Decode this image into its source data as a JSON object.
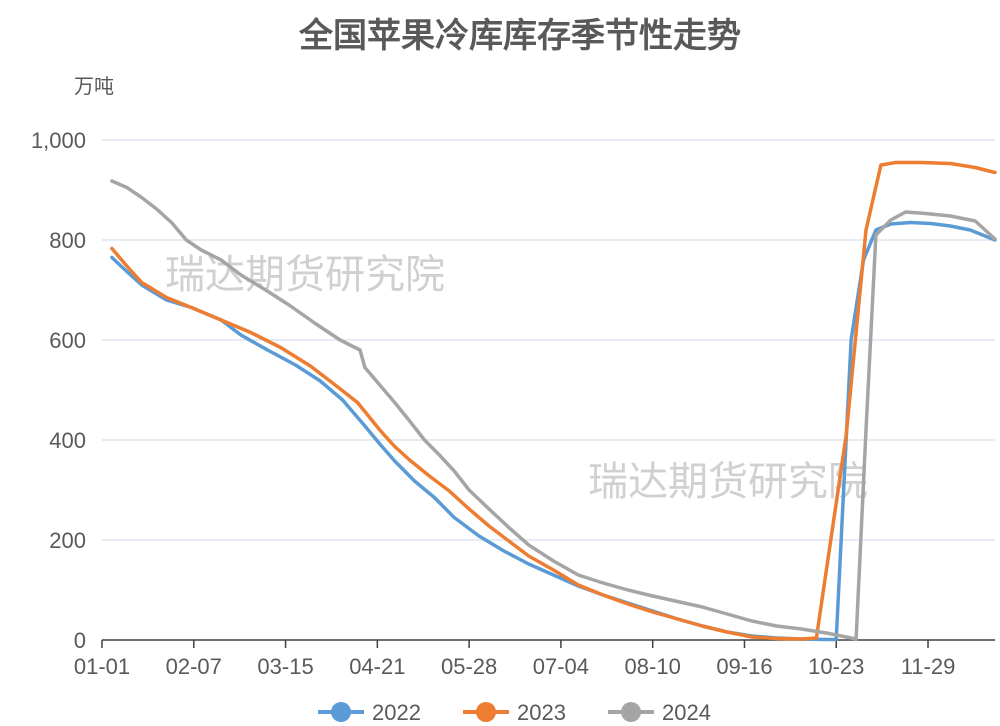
{
  "chart_data": {
    "type": "line",
    "title": "全国苹果冷库库存季节性走势",
    "ylabel": "万吨",
    "xlabel": "",
    "ylim": [
      0,
      1000
    ],
    "yticks": [
      0,
      200,
      400,
      600,
      800,
      1000
    ],
    "ytick_labels": [
      "0",
      "200",
      "400",
      "600",
      "800",
      "1,000"
    ],
    "x_domain": [
      0,
      360
    ],
    "xticks": [
      {
        "label": "01-01",
        "x": 0
      },
      {
        "label": "02-07",
        "x": 37
      },
      {
        "label": "03-15",
        "x": 74
      },
      {
        "label": "04-21",
        "x": 111
      },
      {
        "label": "05-28",
        "x": 148
      },
      {
        "label": "07-04",
        "x": 185
      },
      {
        "label": "08-10",
        "x": 222
      },
      {
        "label": "09-16",
        "x": 259
      },
      {
        "label": "10-23",
        "x": 296
      },
      {
        "label": "11-29",
        "x": 333
      }
    ],
    "grid": true,
    "legend": "bottom",
    "watermarks": [
      "瑞达期货研究院",
      "瑞达期货研究院"
    ],
    "series": [
      {
        "name": "2022",
        "color": "#5b9bd5",
        "points": [
          [
            4,
            765
          ],
          [
            10,
            737
          ],
          [
            16,
            710
          ],
          [
            26,
            680
          ],
          [
            36,
            665
          ],
          [
            48,
            640
          ],
          [
            56,
            610
          ],
          [
            66,
            582
          ],
          [
            78,
            550
          ],
          [
            88,
            518
          ],
          [
            97,
            480
          ],
          [
            106,
            428
          ],
          [
            112,
            392
          ],
          [
            118,
            358
          ],
          [
            126,
            318
          ],
          [
            134,
            285
          ],
          [
            142,
            245
          ],
          [
            152,
            208
          ],
          [
            162,
            178
          ],
          [
            172,
            152
          ],
          [
            182,
            130
          ],
          [
            192,
            108
          ],
          [
            202,
            90
          ],
          [
            212,
            74
          ],
          [
            222,
            58
          ],
          [
            232,
            42
          ],
          [
            242,
            28
          ],
          [
            252,
            16
          ],
          [
            262,
            8
          ],
          [
            272,
            4
          ],
          [
            282,
            2
          ],
          [
            292,
            1
          ],
          [
            296,
            1
          ],
          [
            302,
            600
          ],
          [
            307,
            760
          ],
          [
            312,
            820
          ],
          [
            318,
            832
          ],
          [
            326,
            835
          ],
          [
            334,
            833
          ],
          [
            342,
            828
          ],
          [
            350,
            820
          ],
          [
            360,
            800
          ]
        ]
      },
      {
        "name": "2023",
        "color": "#ed7d31",
        "points": [
          [
            4,
            783
          ],
          [
            10,
            748
          ],
          [
            16,
            715
          ],
          [
            26,
            685
          ],
          [
            36,
            665
          ],
          [
            48,
            640
          ],
          [
            60,
            615
          ],
          [
            72,
            585
          ],
          [
            84,
            548
          ],
          [
            94,
            510
          ],
          [
            103,
            475
          ],
          [
            112,
            420
          ],
          [
            118,
            387
          ],
          [
            124,
            360
          ],
          [
            132,
            328
          ],
          [
            140,
            298
          ],
          [
            148,
            262
          ],
          [
            156,
            228
          ],
          [
            164,
            198
          ],
          [
            172,
            168
          ],
          [
            182,
            140
          ],
          [
            192,
            110
          ],
          [
            202,
            90
          ],
          [
            212,
            72
          ],
          [
            222,
            56
          ],
          [
            232,
            42
          ],
          [
            242,
            28
          ],
          [
            252,
            16
          ],
          [
            262,
            6
          ],
          [
            272,
            3
          ],
          [
            282,
            2
          ],
          [
            288,
            4
          ],
          [
            300,
            410
          ],
          [
            308,
            820
          ],
          [
            314,
            950
          ],
          [
            320,
            955
          ],
          [
            330,
            955
          ],
          [
            342,
            953
          ],
          [
            352,
            945
          ],
          [
            360,
            935
          ]
        ]
      },
      {
        "name": "2024",
        "color": "#a5a5a5",
        "points": [
          [
            4,
            918
          ],
          [
            10,
            905
          ],
          [
            16,
            885
          ],
          [
            22,
            862
          ],
          [
            28,
            835
          ],
          [
            34,
            800
          ],
          [
            40,
            780
          ],
          [
            48,
            760
          ],
          [
            56,
            730
          ],
          [
            66,
            700
          ],
          [
            76,
            668
          ],
          [
            86,
            633
          ],
          [
            96,
            600
          ],
          [
            104,
            580
          ],
          [
            106,
            545
          ],
          [
            112,
            510
          ],
          [
            118,
            475
          ],
          [
            124,
            438
          ],
          [
            130,
            400
          ],
          [
            136,
            370
          ],
          [
            142,
            338
          ],
          [
            148,
            300
          ],
          [
            156,
            262
          ],
          [
            164,
            225
          ],
          [
            172,
            190
          ],
          [
            182,
            158
          ],
          [
            192,
            130
          ],
          [
            202,
            114
          ],
          [
            212,
            100
          ],
          [
            222,
            88
          ],
          [
            232,
            77
          ],
          [
            242,
            66
          ],
          [
            252,
            52
          ],
          [
            262,
            38
          ],
          [
            272,
            28
          ],
          [
            282,
            22
          ],
          [
            292,
            14
          ],
          [
            300,
            6
          ],
          [
            304,
            2
          ],
          [
            308,
            420
          ],
          [
            312,
            810
          ],
          [
            318,
            840
          ],
          [
            324,
            856
          ],
          [
            332,
            853
          ],
          [
            342,
            848
          ],
          [
            352,
            838
          ],
          [
            360,
            802
          ]
        ]
      }
    ]
  }
}
